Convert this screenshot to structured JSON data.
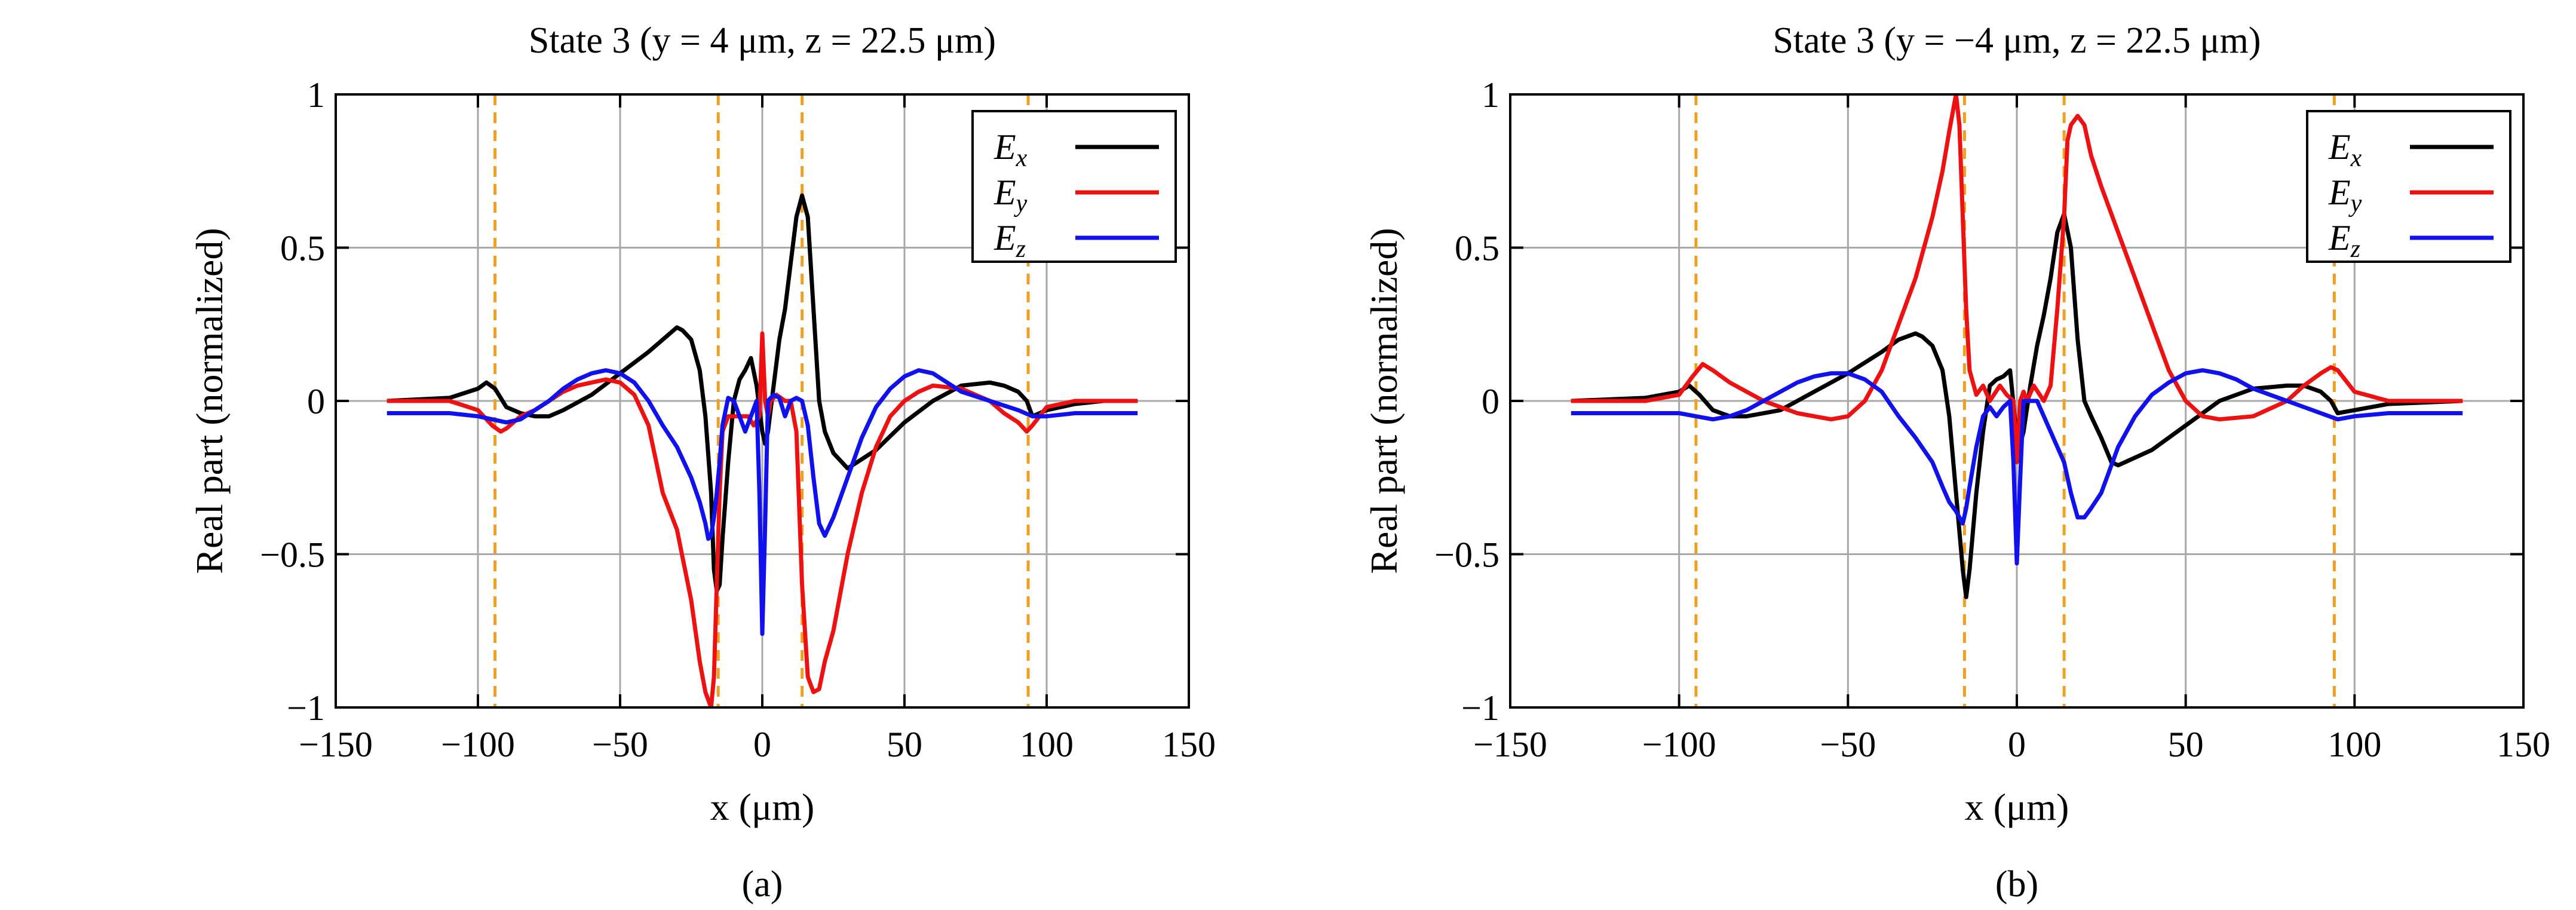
{
  "chart_data": [
    {
      "type": "line",
      "title": "State 3 (y = 4 μm, z = 22.5 μm)",
      "xlabel": "x (μm)",
      "ylabel": "Real part (normalized)",
      "panel_label": "(a)",
      "xlim": [
        -150,
        150
      ],
      "ylim": [
        -1,
        1
      ],
      "xticks": [
        "−150",
        "−100",
        "−50",
        "0",
        "50",
        "100",
        "150"
      ],
      "yticks": [
        "−1",
        "−0.5",
        "0",
        "0.5",
        "1"
      ],
      "grid": true,
      "legend_position": "top-right",
      "vlines": [
        -94,
        -15.5,
        14,
        93.5
      ],
      "vline_color": "#f0a020",
      "series": [
        {
          "name": "Ex",
          "label_main": "E",
          "label_sub": "x",
          "color": "#000000",
          "x": [
            -132,
            -110,
            -100,
            -97,
            -94,
            -90,
            -85,
            -80,
            -75,
            -70,
            -60,
            -50,
            -40,
            -35,
            -30,
            -28,
            -25,
            -22,
            -20,
            -18,
            -17,
            -16,
            -15,
            -14,
            -12,
            -10,
            -8,
            -6,
            -4,
            -2,
            0,
            1,
            2,
            4,
            6,
            8,
            10,
            12,
            14,
            16,
            18,
            20,
            22,
            25,
            30,
            40,
            50,
            60,
            70,
            80,
            85,
            90,
            93,
            95,
            100,
            110,
            120,
            132
          ],
          "y": [
            0.0,
            0.01,
            0.04,
            0.06,
            0.04,
            -0.02,
            -0.04,
            -0.05,
            -0.05,
            -0.03,
            0.02,
            0.09,
            0.16,
            0.2,
            0.24,
            0.23,
            0.2,
            0.1,
            -0.05,
            -0.3,
            -0.55,
            -0.62,
            -0.6,
            -0.45,
            -0.2,
            0.0,
            0.07,
            0.1,
            0.14,
            0.05,
            -0.1,
            -0.14,
            -0.1,
            0.05,
            0.2,
            0.3,
            0.45,
            0.6,
            0.67,
            0.6,
            0.3,
            0.0,
            -0.1,
            -0.17,
            -0.22,
            -0.16,
            -0.07,
            0.0,
            0.05,
            0.06,
            0.05,
            0.03,
            0.0,
            -0.05,
            -0.03,
            -0.01,
            0.0,
            0.0
          ]
        },
        {
          "name": "Ey",
          "label_main": "E",
          "label_sub": "y",
          "color": "#ee1111",
          "x": [
            -132,
            -110,
            -100,
            -95,
            -92,
            -90,
            -85,
            -80,
            -75,
            -70,
            -65,
            -60,
            -55,
            -50,
            -45,
            -40,
            -35,
            -30,
            -25,
            -22,
            -20,
            -18,
            -17,
            -16,
            -15,
            -14,
            -12,
            -10,
            -8,
            -5,
            -3,
            -1,
            0,
            1,
            2,
            3,
            5,
            8,
            10,
            12,
            14,
            16,
            18,
            20,
            22,
            25,
            30,
            35,
            40,
            45,
            50,
            55,
            60,
            70,
            80,
            85,
            90,
            93,
            95,
            100,
            110,
            132
          ],
          "y": [
            0.0,
            0.0,
            -0.03,
            -0.08,
            -0.1,
            -0.09,
            -0.05,
            -0.03,
            0.0,
            0.03,
            0.05,
            0.06,
            0.07,
            0.06,
            0.02,
            -0.08,
            -0.3,
            -0.42,
            -0.65,
            -0.85,
            -0.95,
            -1.0,
            -0.9,
            -0.6,
            -0.3,
            -0.1,
            -0.05,
            -0.05,
            -0.05,
            -0.05,
            -0.08,
            -0.05,
            0.22,
            0.0,
            -0.05,
            0.0,
            0.02,
            0.0,
            0.0,
            -0.1,
            -0.6,
            -0.9,
            -0.95,
            -0.94,
            -0.85,
            -0.75,
            -0.5,
            -0.3,
            -0.15,
            -0.05,
            0.0,
            0.03,
            0.05,
            0.04,
            0.0,
            -0.04,
            -0.07,
            -0.1,
            -0.08,
            -0.02,
            0.0,
            0.0
          ]
        },
        {
          "name": "Ez",
          "label_main": "E",
          "label_sub": "z",
          "color": "#1111ee",
          "x": [
            -132,
            -110,
            -100,
            -95,
            -90,
            -85,
            -80,
            -75,
            -70,
            -65,
            -60,
            -55,
            -50,
            -45,
            -40,
            -35,
            -30,
            -25,
            -22,
            -20,
            -19,
            -18,
            -17,
            -16,
            -15,
            -14,
            -12,
            -10,
            -8,
            -6,
            -4,
            -2,
            -1,
            0,
            1,
            2,
            4,
            6,
            8,
            10,
            12,
            14,
            16,
            18,
            20,
            22,
            25,
            30,
            35,
            40,
            45,
            50,
            55,
            60,
            65,
            70,
            80,
            90,
            95,
            100,
            110,
            132
          ],
          "y": [
            -0.04,
            -0.04,
            -0.05,
            -0.06,
            -0.07,
            -0.06,
            -0.03,
            0.0,
            0.04,
            0.07,
            0.09,
            0.1,
            0.09,
            0.06,
            0.0,
            -0.08,
            -0.15,
            -0.25,
            -0.33,
            -0.4,
            -0.45,
            -0.44,
            -0.38,
            -0.3,
            -0.2,
            -0.08,
            0.01,
            0.0,
            -0.05,
            -0.1,
            -0.05,
            0.0,
            -0.3,
            -0.76,
            -0.4,
            0.0,
            0.02,
            0.01,
            -0.05,
            0.0,
            0.01,
            0.0,
            -0.08,
            -0.25,
            -0.4,
            -0.44,
            -0.38,
            -0.25,
            -0.12,
            -0.02,
            0.04,
            0.08,
            0.1,
            0.09,
            0.06,
            0.03,
            0.0,
            -0.03,
            -0.05,
            -0.05,
            -0.04,
            -0.04
          ]
        }
      ]
    },
    {
      "type": "line",
      "title": "State 3 (y = −4 μm, z = 22.5 μm)",
      "xlabel": "x (μm)",
      "ylabel": "Real part (normalized)",
      "panel_label": "(b)",
      "xlim": [
        -150,
        150
      ],
      "ylim": [
        -1,
        1
      ],
      "xticks": [
        "−150",
        "−100",
        "−50",
        "0",
        "50",
        "100",
        "150"
      ],
      "yticks": [
        "−1",
        "−0.5",
        "0",
        "0.5",
        "1"
      ],
      "grid": true,
      "legend_position": "top-right",
      "vlines": [
        -95,
        -15.5,
        14,
        94
      ],
      "vline_color": "#f0a020",
      "series": [
        {
          "name": "Ex",
          "label_main": "E",
          "label_sub": "x",
          "color": "#000000",
          "x": [
            -132,
            -110,
            -100,
            -97,
            -94,
            -90,
            -85,
            -80,
            -70,
            -60,
            -50,
            -40,
            -35,
            -30,
            -28,
            -25,
            -22,
            -20,
            -18,
            -16,
            -15,
            -14,
            -12,
            -10,
            -8,
            -6,
            -4,
            -2,
            0,
            1,
            2,
            4,
            6,
            8,
            10,
            12,
            14,
            16,
            18,
            20,
            22,
            25,
            28,
            30,
            40,
            50,
            60,
            70,
            80,
            85,
            90,
            93,
            95,
            100,
            110,
            132
          ],
          "y": [
            0.0,
            0.01,
            0.03,
            0.05,
            0.02,
            -0.03,
            -0.05,
            -0.05,
            -0.03,
            0.03,
            0.09,
            0.16,
            0.2,
            0.22,
            0.21,
            0.18,
            0.1,
            -0.05,
            -0.3,
            -0.55,
            -0.64,
            -0.55,
            -0.3,
            -0.1,
            0.05,
            0.07,
            0.08,
            0.1,
            -0.12,
            -0.14,
            -0.1,
            0.05,
            0.18,
            0.28,
            0.4,
            0.55,
            0.61,
            0.5,
            0.2,
            0.0,
            -0.05,
            -0.12,
            -0.2,
            -0.21,
            -0.16,
            -0.08,
            0.0,
            0.04,
            0.05,
            0.05,
            0.03,
            0.0,
            -0.04,
            -0.03,
            -0.01,
            0.0
          ]
        },
        {
          "name": "Ey",
          "label_main": "E",
          "label_sub": "y",
          "color": "#ee1111",
          "x": [
            -132,
            -110,
            -100,
            -96,
            -93,
            -90,
            -85,
            -80,
            -75,
            -70,
            -65,
            -60,
            -55,
            -50,
            -45,
            -40,
            -35,
            -30,
            -25,
            -22,
            -20,
            -18,
            -17,
            -16,
            -15,
            -14,
            -12,
            -10,
            -8,
            -5,
            -3,
            -1,
            0,
            1,
            2,
            3,
            5,
            8,
            10,
            12,
            14,
            15,
            16,
            18,
            20,
            22,
            25,
            30,
            35,
            40,
            45,
            50,
            55,
            60,
            70,
            80,
            85,
            90,
            93,
            95,
            100,
            110,
            132
          ],
          "y": [
            0.0,
            0.0,
            0.02,
            0.08,
            0.12,
            0.1,
            0.06,
            0.03,
            0.0,
            -0.02,
            -0.04,
            -0.05,
            -0.06,
            -0.05,
            0.0,
            0.1,
            0.25,
            0.4,
            0.6,
            0.75,
            0.88,
            1.0,
            0.9,
            0.6,
            0.3,
            0.1,
            0.02,
            0.05,
            0.0,
            0.05,
            0.02,
            0.0,
            -0.2,
            0.0,
            0.03,
            0.0,
            0.05,
            0.0,
            0.05,
            0.3,
            0.6,
            0.85,
            0.9,
            0.93,
            0.9,
            0.8,
            0.7,
            0.55,
            0.4,
            0.25,
            0.1,
            0.0,
            -0.05,
            -0.06,
            -0.05,
            0.0,
            0.05,
            0.09,
            0.11,
            0.1,
            0.03,
            0.0,
            0.0
          ]
        },
        {
          "name": "Ez",
          "label_main": "E",
          "label_sub": "z",
          "color": "#1111ee",
          "x": [
            -132,
            -110,
            -100,
            -95,
            -90,
            -85,
            -80,
            -75,
            -70,
            -65,
            -60,
            -55,
            -50,
            -45,
            -40,
            -35,
            -30,
            -25,
            -22,
            -20,
            -18,
            -17,
            -16,
            -15,
            -14,
            -12,
            -10,
            -8,
            -6,
            -4,
            -2,
            -1,
            0,
            1,
            2,
            4,
            6,
            8,
            10,
            12,
            14,
            16,
            18,
            20,
            22,
            25,
            30,
            35,
            40,
            45,
            50,
            55,
            60,
            65,
            70,
            80,
            90,
            95,
            100,
            110,
            132
          ],
          "y": [
            -0.04,
            -0.04,
            -0.04,
            -0.05,
            -0.06,
            -0.05,
            -0.03,
            0.0,
            0.03,
            0.06,
            0.08,
            0.09,
            0.09,
            0.07,
            0.03,
            -0.05,
            -0.12,
            -0.2,
            -0.28,
            -0.33,
            -0.36,
            -0.38,
            -0.4,
            -0.35,
            -0.28,
            -0.15,
            -0.05,
            -0.02,
            -0.05,
            -0.02,
            0.0,
            -0.2,
            -0.53,
            -0.25,
            0.0,
            0.0,
            0.0,
            -0.05,
            -0.1,
            -0.15,
            -0.2,
            -0.3,
            -0.38,
            -0.38,
            -0.35,
            -0.3,
            -0.15,
            -0.05,
            0.02,
            0.06,
            0.09,
            0.1,
            0.09,
            0.07,
            0.04,
            0.0,
            -0.04,
            -0.06,
            -0.05,
            -0.04,
            -0.04
          ]
        }
      ]
    }
  ]
}
